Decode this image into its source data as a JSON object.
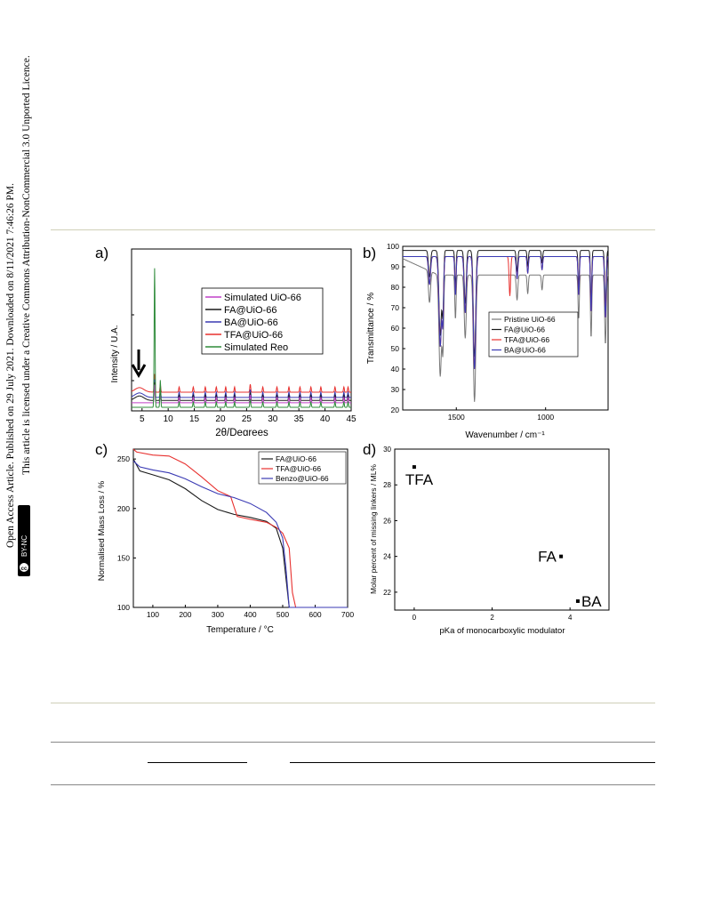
{
  "license_text": {
    "line1": "Open Access Article. Published on 29 July 2021. Downloaded on 8/11/2021 7:46:26 PM.",
    "line2": "This article is licensed under a Creative Commons Attribution-NonCommercial 3.0 Unported Licence.",
    "badge": "BY-NC",
    "cc": "cc"
  },
  "panels": {
    "a": "a)",
    "b": "b)",
    "c": "c)",
    "d": "d)"
  },
  "colors": {
    "black": "#1a1a1a",
    "red": "#e8312f",
    "blue": "#3a3ab4",
    "magenta": "#c040c8",
    "green": "#2e8b3a",
    "gray": "#777777"
  },
  "chart_data": [
    {
      "id": "a",
      "type": "line",
      "xlabel": "2θ/Degrees",
      "ylabel": "Intensity / U.A.",
      "xlim": [
        3,
        45
      ],
      "x_ticks": [
        5,
        10,
        15,
        20,
        25,
        30,
        35,
        40,
        45
      ],
      "legend": [
        "Simulated UiO-66",
        "FA@UiO-66",
        "BA@UiO-66",
        "TFA@UiO-66",
        "Simulated Reo"
      ],
      "legend_position": "top-right",
      "annotation": "arrow at 2θ ≈ 5",
      "peaks_2theta": [
        7.4,
        8.5,
        12.1,
        14.8,
        17.1,
        19.2,
        21.0,
        22.7,
        25.7,
        28.1,
        30.8,
        33.1,
        35.2,
        37.3,
        39.2,
        41.9,
        43.6,
        44.4
      ],
      "series_baselines": {
        "TFA@UiO-66": 0.1,
        "BA@UiO-66": 0.065,
        "FA@UiO-66": 0.045,
        "Simulated UiO-66": 0.03,
        "Simulated Reo": 0.0
      },
      "main_peak_relative_height": 1.0
    },
    {
      "id": "b",
      "type": "line",
      "xlabel": "Wavenumber / cm⁻¹",
      "ylabel": "Transmittance / %",
      "xlim": [
        1800,
        650
      ],
      "ylim": [
        20,
        100
      ],
      "x_ticks": [
        1500,
        1000
      ],
      "y_ticks": [
        20,
        30,
        40,
        50,
        60,
        70,
        80,
        90,
        100
      ],
      "legend": [
        "Pristine UiO-66",
        "FA@UiO-66",
        "TFA@UiO-66",
        "BA@UiO-66"
      ],
      "legend_position": "right",
      "min_transmittance_near_1400": 21
    },
    {
      "id": "c",
      "type": "line",
      "xlabel": "Temperature / °C",
      "ylabel": "Normalised Mass Loss / %",
      "xlim": [
        40,
        700
      ],
      "ylim": [
        100,
        260
      ],
      "x_ticks": [
        100,
        200,
        300,
        400,
        500,
        600,
        700
      ],
      "y_ticks": [
        100,
        150,
        200,
        250
      ],
      "legend": [
        "FA@UiO-66",
        "TFA@UiO-66",
        "Benzo@UiO-66"
      ],
      "legend_position": "top-right",
      "series": [
        {
          "name": "FA@UiO-66",
          "x": [
            40,
            60,
            100,
            150,
            200,
            250,
            300,
            350,
            400,
            450,
            480,
            500,
            510,
            520,
            600,
            700
          ],
          "y": [
            250,
            238,
            234,
            229,
            220,
            208,
            199,
            194,
            191,
            187,
            180,
            160,
            130,
            100,
            100,
            100
          ]
        },
        {
          "name": "TFA@UiO-66",
          "x": [
            40,
            50,
            100,
            150,
            200,
            250,
            300,
            340,
            360,
            400,
            450,
            480,
            500,
            520,
            530,
            540,
            600,
            700
          ],
          "y": [
            260,
            257,
            254,
            253,
            245,
            232,
            218,
            212,
            192,
            189,
            186,
            181,
            175,
            160,
            115,
            100,
            100,
            100
          ]
        },
        {
          "name": "Benzo@UiO-66",
          "x": [
            40,
            60,
            100,
            150,
            200,
            250,
            300,
            350,
            400,
            450,
            480,
            500,
            510,
            520,
            600,
            700
          ],
          "y": [
            248,
            242,
            239,
            236,
            230,
            222,
            215,
            211,
            205,
            196,
            186,
            170,
            140,
            100,
            100,
            100
          ]
        }
      ]
    },
    {
      "id": "d",
      "type": "scatter",
      "xlabel": "pKa of monocarboxylic modulator",
      "ylabel": "Molar percent of missing linkers / ML%",
      "xlim": [
        -0.5,
        5
      ],
      "ylim": [
        21,
        30
      ],
      "x_ticks": [
        0,
        2,
        4
      ],
      "y_ticks": [
        22,
        24,
        26,
        28,
        30
      ],
      "points": [
        {
          "label": "TFA",
          "x": 0.0,
          "y": 29.0
        },
        {
          "label": "FA",
          "x": 3.77,
          "y": 24.0
        },
        {
          "label": "BA",
          "x": 4.2,
          "y": 21.5
        }
      ]
    }
  ]
}
